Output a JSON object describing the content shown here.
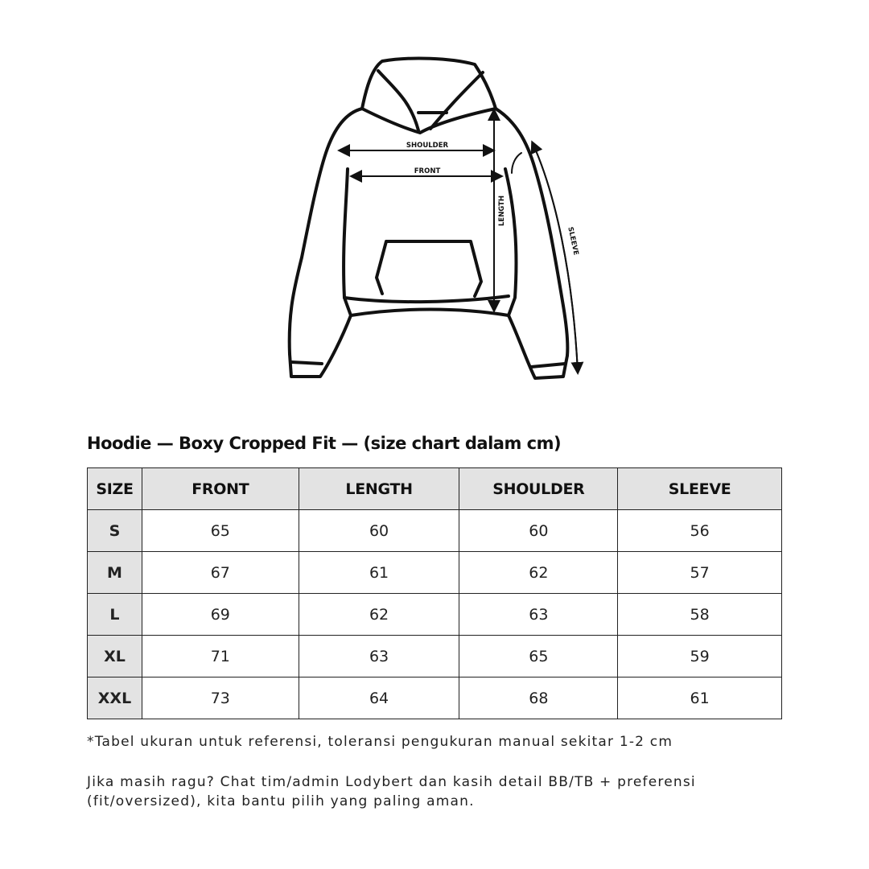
{
  "diagram": {
    "labels": {
      "shoulder": "SHOULDER",
      "front": "FRONT",
      "length": "LENGTH",
      "sleeve": "SLEEVE"
    }
  },
  "title": "Hoodie — Boxy Cropped Fit — (size chart dalam cm)",
  "table": {
    "headers": [
      "SIZE",
      "FRONT",
      "LENGTH",
      "SHOULDER",
      "SLEEVE"
    ],
    "rows": [
      [
        "S",
        "65",
        "60",
        "60",
        "56"
      ],
      [
        "M",
        "67",
        "61",
        "62",
        "57"
      ],
      [
        "L",
        "69",
        "62",
        "63",
        "58"
      ],
      [
        "XL",
        "71",
        "63",
        "65",
        "59"
      ],
      [
        "XXL",
        "73",
        "64",
        "68",
        "61"
      ]
    ]
  },
  "note": "*Tabel ukuran untuk referensi, toleransi pengukuran manual sekitar 1-2 cm",
  "help": "Jika masih ragu? Chat tim/admin Lodybert dan kasih detail BB/TB + preferensi (fit/oversized), kita bantu pilih yang paling aman."
}
